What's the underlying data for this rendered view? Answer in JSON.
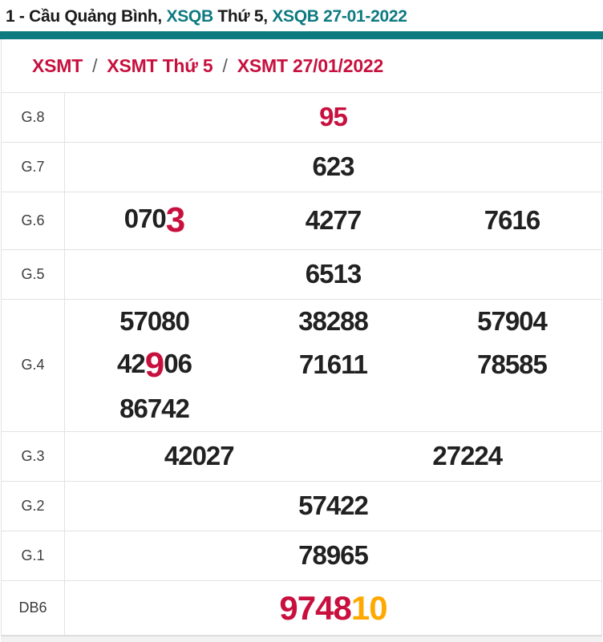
{
  "page_title": {
    "segments": [
      {
        "text": "1 - Cầu Quảng Bình, ",
        "color": "dark"
      },
      {
        "text": "XSQB",
        "color": "teal"
      },
      {
        "text": " Thứ 5, ",
        "color": "dark"
      },
      {
        "text": "XSQB 27-01-2022",
        "color": "teal"
      }
    ]
  },
  "breadcrumb": {
    "separator": "/",
    "items": [
      "XSMT",
      "XSMT Thứ 5",
      "XSMT 27/01/2022"
    ]
  },
  "results_table": {
    "rows": [
      {
        "label": "G.8",
        "columns": 1,
        "numbers": [
          [
            {
              "text": "95",
              "style": "red"
            }
          ]
        ]
      },
      {
        "label": "G.7",
        "columns": 1,
        "numbers": [
          [
            {
              "text": "623",
              "style": "normal"
            }
          ]
        ]
      },
      {
        "label": "G.6",
        "columns": 3,
        "numbers": [
          [
            {
              "text": "070",
              "style": "normal"
            },
            {
              "text": "3",
              "style": "redbig"
            }
          ],
          [
            {
              "text": "4277",
              "style": "normal"
            }
          ],
          [
            {
              "text": "7616",
              "style": "normal"
            }
          ]
        ]
      },
      {
        "label": "G.5",
        "columns": 1,
        "numbers": [
          [
            {
              "text": "6513",
              "style": "normal"
            }
          ]
        ]
      },
      {
        "label": "G.4",
        "columns": 3,
        "numbers": [
          [
            {
              "text": "57080",
              "style": "normal"
            }
          ],
          [
            {
              "text": "38288",
              "style": "normal"
            }
          ],
          [
            {
              "text": "57904",
              "style": "normal"
            }
          ],
          [
            {
              "text": "42",
              "style": "normal"
            },
            {
              "text": "9",
              "style": "redbig"
            },
            {
              "text": "06",
              "style": "normal"
            }
          ],
          [
            {
              "text": "71611",
              "style": "normal"
            }
          ],
          [
            {
              "text": "78585",
              "style": "normal"
            }
          ],
          [
            {
              "text": "86742",
              "style": "normal"
            }
          ]
        ]
      },
      {
        "label": "G.3",
        "columns": 2,
        "numbers": [
          [
            {
              "text": "42027",
              "style": "normal"
            }
          ],
          [
            {
              "text": "27224",
              "style": "normal"
            }
          ]
        ]
      },
      {
        "label": "G.2",
        "columns": 1,
        "numbers": [
          [
            {
              "text": "57422",
              "style": "normal"
            }
          ]
        ]
      },
      {
        "label": "G.1",
        "columns": 1,
        "numbers": [
          [
            {
              "text": "78965",
              "style": "normal"
            }
          ]
        ]
      },
      {
        "label": "DB6",
        "columns": 1,
        "big": true,
        "numbers": [
          [
            {
              "text": "9748",
              "style": "red"
            },
            {
              "text": "10",
              "style": "orange"
            }
          ]
        ]
      }
    ]
  },
  "colors": {
    "teal": "#0d7a80",
    "crimson": "#c8103e",
    "orange": "#ffa800",
    "text_dark": "#212121",
    "border": "#e2e2e2"
  }
}
